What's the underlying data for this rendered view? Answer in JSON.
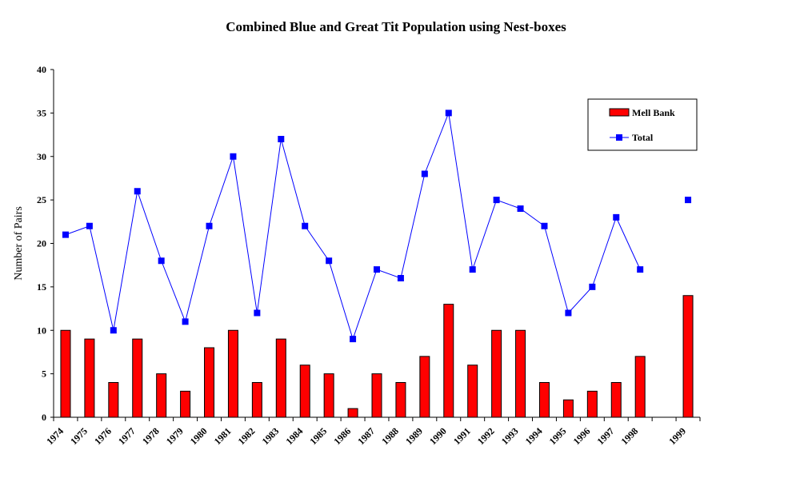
{
  "chart_data": {
    "type": "bar",
    "title": "Combined Blue and Great Tit Population using Nest-boxes",
    "xlabel": "",
    "ylabel": "Number of Pairs",
    "ylim": [
      0,
      40
    ],
    "yticks": [
      0,
      5,
      10,
      15,
      20,
      25,
      30,
      35,
      40
    ],
    "categories": [
      "1974",
      "1975",
      "1976",
      "1977",
      "1978",
      "1979",
      "1980",
      "1981",
      "1982",
      "1983",
      "1984",
      "1985",
      "1986",
      "1987",
      "1988",
      "1989",
      "1990",
      "1991",
      "1992",
      "1993",
      "1994",
      "1995",
      "1996",
      "1997",
      "1998",
      "",
      "1999"
    ],
    "grid": false,
    "legend_position": "top-right",
    "series": [
      {
        "name": "Mell Bank",
        "type": "bar",
        "color": "#ff0000",
        "values": [
          10,
          9,
          4,
          9,
          5,
          3,
          8,
          10,
          4,
          9,
          6,
          5,
          1,
          5,
          4,
          7,
          13,
          6,
          10,
          10,
          4,
          2,
          3,
          4,
          7,
          null,
          14
        ]
      },
      {
        "name": "Total",
        "type": "line",
        "color": "#0000ff",
        "values": [
          21,
          22,
          10,
          26,
          18,
          11,
          22,
          30,
          12,
          32,
          22,
          18,
          9,
          17,
          16,
          28,
          35,
          17,
          25,
          24,
          22,
          12,
          15,
          23,
          17,
          null,
          25
        ]
      }
    ]
  }
}
